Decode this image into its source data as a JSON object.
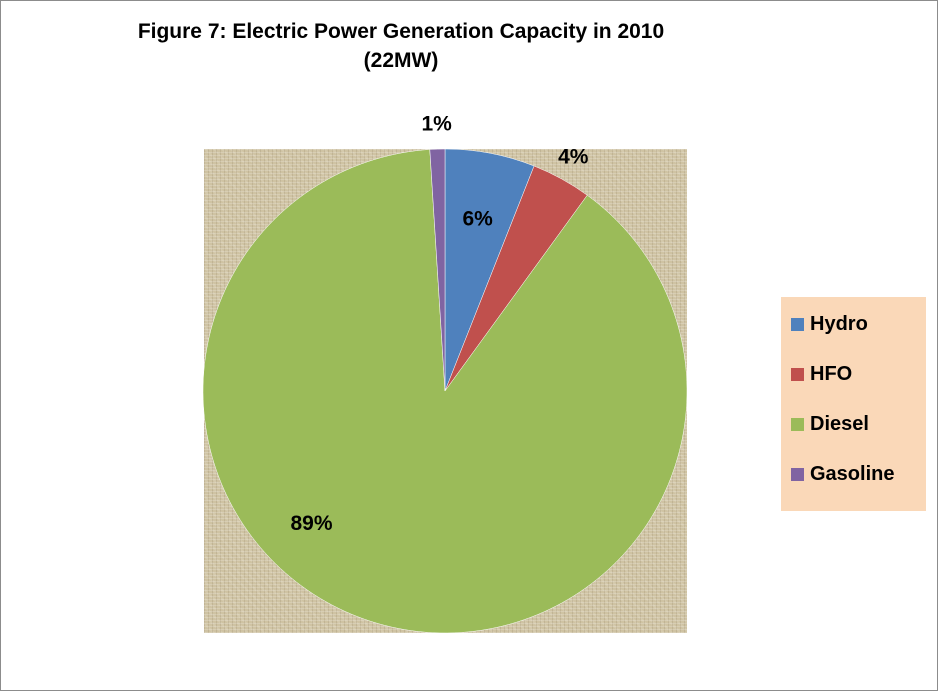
{
  "chart_data": {
    "type": "pie",
    "title": "Figure 7: Electric Power Generation Capacity in 2010",
    "subtitle": "(22MW)",
    "categories": [
      "Hydro",
      "HFO",
      "Diesel",
      "Gasoline"
    ],
    "values": [
      6,
      4,
      89,
      1
    ],
    "data_labels": [
      "6%",
      "4%",
      "89%",
      "1%"
    ],
    "colors": [
      "#4f81bd",
      "#c0504d",
      "#9bbb59",
      "#8064a2"
    ],
    "legend_position": "right",
    "start_angle_deg": 0,
    "direction": "clockwise"
  }
}
